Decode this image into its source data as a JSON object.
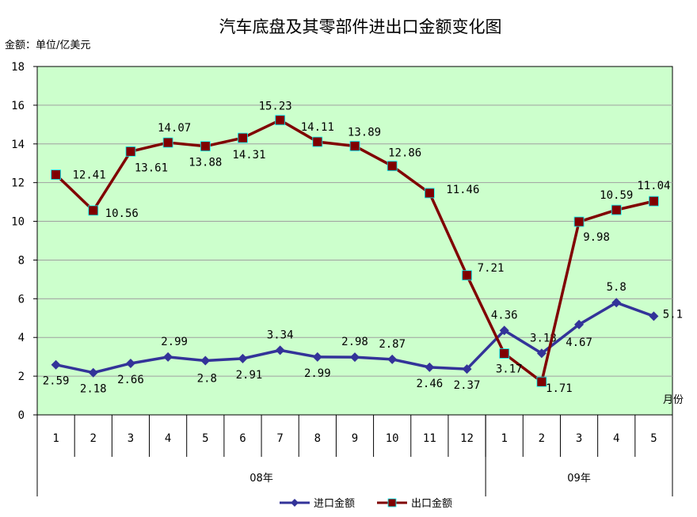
{
  "chart_data": {
    "type": "line",
    "title": "汽车底盘及其零部件进出口金额变化图",
    "ylabel": "金额：单位/亿美元",
    "xlabel": "月份",
    "ylim": [
      0,
      18
    ],
    "ytick_step": 2,
    "grid": true,
    "plot_background": "#ccffcc",
    "categories": [
      "1",
      "2",
      "3",
      "4",
      "5",
      "6",
      "7",
      "8",
      "9",
      "10",
      "11",
      "12",
      "1",
      "2",
      "3",
      "4",
      "5"
    ],
    "year_groups": [
      {
        "label": "08年",
        "count": 12
      },
      {
        "label": "09年",
        "count": 5
      }
    ],
    "legend_position": "bottom",
    "series": [
      {
        "name": "进口金额",
        "color": "#333399",
        "marker": "diamond",
        "values": [
          2.59,
          2.18,
          2.66,
          2.99,
          2.8,
          2.91,
          3.34,
          2.99,
          2.98,
          2.87,
          2.46,
          2.37,
          4.36,
          3.18,
          4.67,
          5.8,
          5.1
        ],
        "labels": [
          "2.59",
          "2.18",
          "2.66",
          "2.99",
          "2.8",
          "2.91",
          "3.34",
          "2.99",
          "2.98",
          "2.87",
          "2.46",
          "2.37",
          "4.36",
          "3.18",
          "4.67",
          "5.8",
          "5.1"
        ]
      },
      {
        "name": "出口金额",
        "color": "#800000",
        "marker": "square",
        "values": [
          12.41,
          10.56,
          13.61,
          14.07,
          13.88,
          14.31,
          15.23,
          14.11,
          13.89,
          12.86,
          11.46,
          7.21,
          3.17,
          1.71,
          9.98,
          10.59,
          11.04
        ],
        "labels": [
          "12.41",
          "10.56",
          "13.61",
          "14.07",
          "13.88",
          "14.31",
          "15.23",
          "14.11",
          "13.89",
          "12.86",
          "11.46",
          "7.21",
          "3.17",
          "1.71",
          "9.98",
          "10.59",
          "11.04"
        ]
      }
    ]
  }
}
